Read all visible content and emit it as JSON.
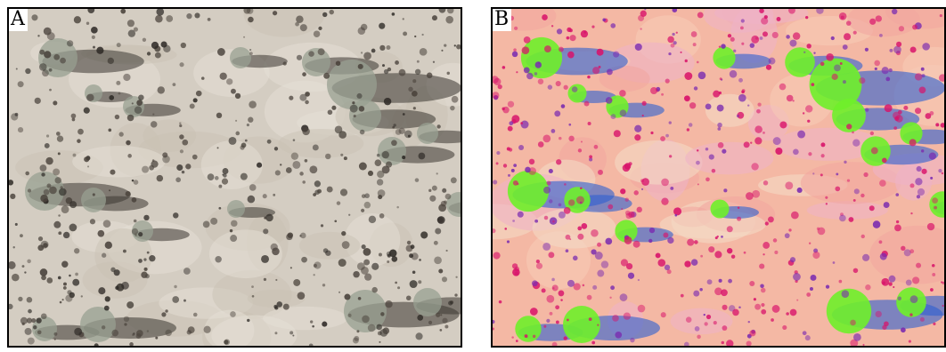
{
  "panels": [
    {
      "id": "A",
      "label": "A",
      "description": "aerial-photograph"
    },
    {
      "id": "B",
      "label": "B",
      "description": "false-color-composite"
    }
  ],
  "colors": {
    "sand": "#d6cfc4",
    "shrub_gray": "#8f968a",
    "shadow": "#3b3632",
    "false_bg": "#f4b7a3",
    "false_veg": "#6ff02a",
    "false_shadow": "#2d5fd0",
    "false_dots": "#d8126a"
  }
}
